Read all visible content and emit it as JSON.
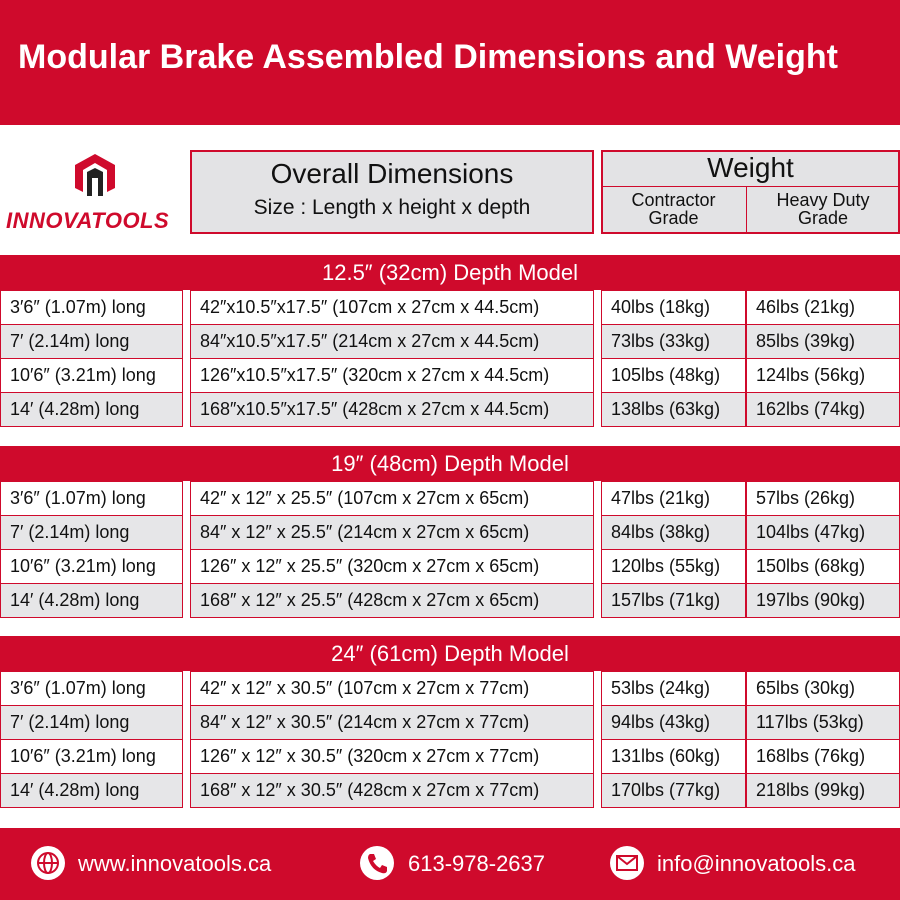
{
  "header": {
    "title": "Modular Brake Assembled Dimensions and Weight"
  },
  "logo": {
    "text": "INNOVATOOLS"
  },
  "table": {
    "dimensions_heading": "Overall Dimensions",
    "dimensions_subheading": "Size : Length x height x depth",
    "weight_heading": "Weight",
    "weight_columns": [
      "Contractor Grade",
      "Heavy Duty Grade"
    ],
    "sections": [
      {
        "title": "12.5″ (32cm) Depth Model",
        "rows": [
          [
            "3′6″ (1.07m) long",
            "42″x10.5″x17.5″ (107cm x 27cm x 44.5cm)",
            "40lbs (18kg)",
            "46lbs (21kg)"
          ],
          [
            "7′ (2.14m) long",
            "84″x10.5″x17.5″ (214cm x 27cm x 44.5cm)",
            "73lbs (33kg)",
            "85lbs (39kg)"
          ],
          [
            "10′6″ (3.21m) long",
            "126″x10.5″x17.5″ (320cm x 27cm x 44.5cm)",
            "105lbs (48kg)",
            "124lbs (56kg)"
          ],
          [
            "14′ (4.28m) long",
            "168″x10.5″x17.5″ (428cm x 27cm x 44.5cm)",
            "138lbs (63kg)",
            "162lbs (74kg)"
          ]
        ]
      },
      {
        "title": "19″ (48cm) Depth Model",
        "rows": [
          [
            "3′6″ (1.07m) long",
            "42″ x 12″ x 25.5″ (107cm x 27cm x 65cm)",
            "47lbs (21kg)",
            "57lbs (26kg)"
          ],
          [
            "7′ (2.14m) long",
            "84″ x 12″ x 25.5″ (214cm x 27cm x 65cm)",
            "84lbs (38kg)",
            "104lbs (47kg)"
          ],
          [
            "10′6″ (3.21m) long",
            "126″ x 12″ x 25.5″ (320cm x 27cm x 65cm)",
            "120lbs (55kg)",
            "150lbs (68kg)"
          ],
          [
            "14′ (4.28m) long",
            "168″ x 12″ x 25.5″ (428cm x 27cm x 65cm)",
            "157lbs (71kg)",
            "197lbs (90kg)"
          ]
        ]
      },
      {
        "title": "24″ (61cm) Depth Model",
        "rows": [
          [
            "3′6″ (1.07m) long",
            "42″ x 12″ x 30.5″ (107cm x 27cm x 77cm)",
            "53lbs (24kg)",
            "65lbs (30kg)"
          ],
          [
            "7′ (2.14m) long",
            "84″ x 12″ x 30.5″ (214cm x 27cm x 77cm)",
            "94lbs (43kg)",
            "117lbs (53kg)"
          ],
          [
            "10′6″ (3.21m) long",
            "126″ x 12″ x 30.5″ (320cm x 27cm x 77cm)",
            "131lbs (60kg)",
            "168lbs (76kg)"
          ],
          [
            "14′ (4.28m) long",
            "168″ x 12″ x 30.5″ (428cm x 27cm x 77cm)",
            "170lbs (77kg)",
            "218lbs (99kg)"
          ]
        ]
      }
    ]
  },
  "footer": {
    "website": "www.innovatools.ca",
    "phone": "613-978-2637",
    "email": "info@innovatools.ca"
  }
}
